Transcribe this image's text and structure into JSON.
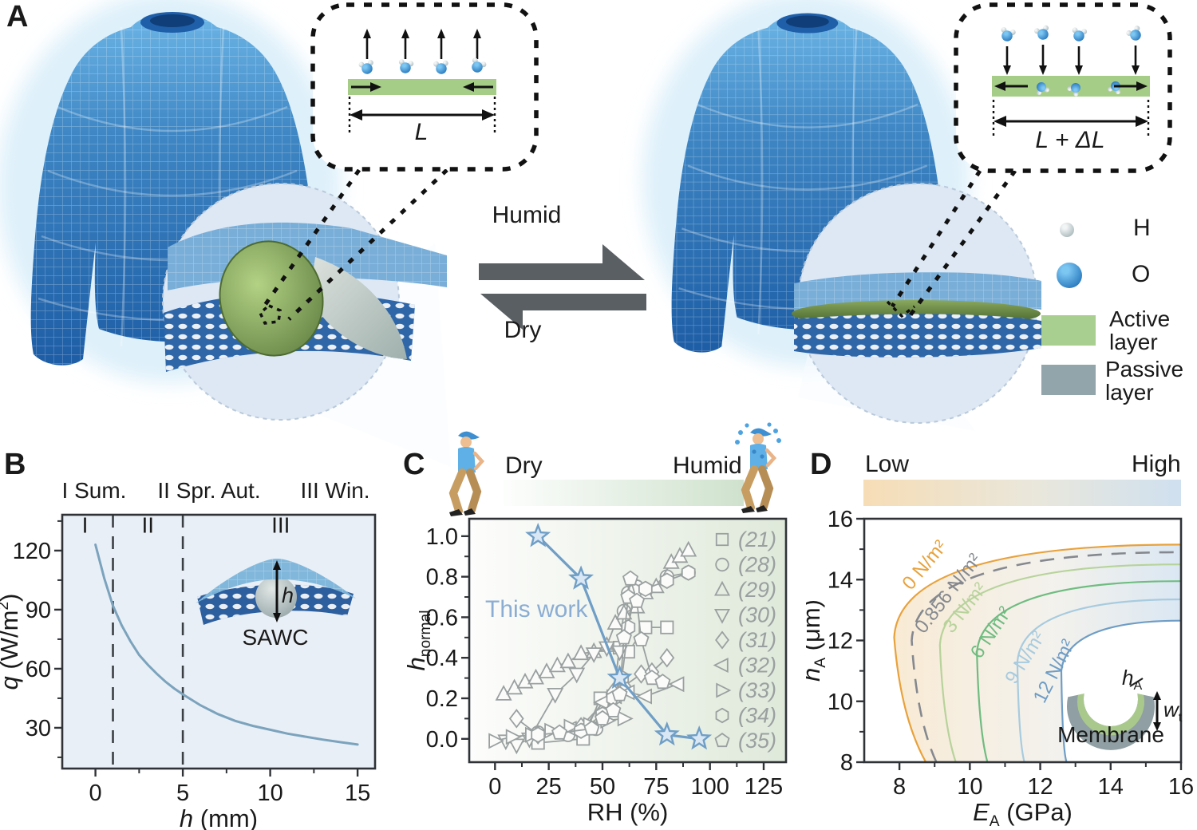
{
  "panelA": {
    "label": "A",
    "humid_label": "Humid",
    "dry_label": "Dry",
    "inset_dry": {
      "dimension_label": "L"
    },
    "inset_humid": {
      "dimension_label": "L + ΔL"
    },
    "legend": {
      "h_label": "H",
      "o_label": "O",
      "active_label": "Active layer",
      "passive_label": "Passive layer",
      "active_color": "#a8cf90",
      "passive_color": "#91a5ab"
    }
  },
  "panelB": {
    "label": "B",
    "season_labels": [
      "I Sum.",
      "II Spr. Aut.",
      "III Win."
    ],
    "inset_label": "SAWC",
    "inset_h_label": "h"
  },
  "panelC": {
    "label": "C",
    "dry_label": "Dry",
    "humid_label": "Humid",
    "annotation": "This work",
    "annotation_color": "#8badd3"
  },
  "panelD": {
    "label": "D",
    "low_label": "Low",
    "high_label": "High",
    "inset_label": "Membrane",
    "inset_h_var": "h",
    "inset_h_sub": "A",
    "inset_w_var": "w",
    "inset_w_sub": "t"
  },
  "chart_data": [
    {
      "id": "panelB-line",
      "type": "line",
      "xlabel_parts": [
        [
          "h",
          "i"
        ],
        [
          " (mm)",
          "n"
        ]
      ],
      "ylabel_parts": [
        [
          "q",
          "i"
        ],
        [
          " (W/m",
          "n"
        ],
        [
          "2",
          "sup"
        ],
        [
          ")",
          "n"
        ]
      ],
      "xlim": [
        -1.9,
        16.0
      ],
      "ylim": [
        9.3,
        138.2
      ],
      "xticks": [
        0,
        5,
        10,
        15
      ],
      "yticks": [
        30,
        60,
        90,
        120
      ],
      "xminor": [
        2.5,
        7.5,
        12.5
      ],
      "yminor": [
        15,
        45,
        75,
        105,
        135
      ],
      "bg": "#e9eff6",
      "dashed_vlines": [
        1,
        5
      ],
      "region_labels": [
        {
          "text": "I",
          "x": -0.6,
          "y": 129
        },
        {
          "text": "II",
          "x": 3.0,
          "y": 129
        },
        {
          "text": "III",
          "x": 10.6,
          "y": 129
        }
      ],
      "series": [
        {
          "name": "q vs h",
          "color": "#7ba3bd",
          "width": 3,
          "x": [
            0,
            0.5,
            1,
            1.5,
            2,
            2.5,
            3,
            3.5,
            4,
            4.5,
            5,
            6,
            7,
            8,
            9,
            10,
            11,
            12,
            13,
            14,
            15
          ],
          "y": [
            123,
            106,
            92,
            82,
            74,
            67,
            62,
            57.5,
            53.5,
            50,
            47,
            41.5,
            37,
            33.5,
            31,
            29,
            27,
            25.5,
            24,
            22.7,
            21.5
          ]
        }
      ]
    },
    {
      "id": "panelC-scatter",
      "type": "scatter",
      "xlabel_parts": [
        [
          "RH (%)",
          "n"
        ]
      ],
      "ylabel_parts": [
        [
          "h",
          "i"
        ],
        [
          "normal",
          "sub"
        ]
      ],
      "xlim": [
        -12,
        135.4
      ],
      "ylim": [
        -0.115,
        1.086
      ],
      "xticks": [
        0,
        25,
        50,
        75,
        100,
        125
      ],
      "yticks": [
        0,
        0.2,
        0.4,
        0.6,
        0.8,
        1.0
      ],
      "ytick_decimals": 1,
      "xminor": [
        12.5,
        37.5,
        62.5,
        87.5,
        112.5
      ],
      "yminor": [
        0.1,
        0.3,
        0.5,
        0.7,
        0.9
      ],
      "bg_gradient": [
        "#fdfdfc",
        "#dfe9da"
      ],
      "series_color": "#9aa0a0",
      "series": [
        {
          "name": "(21)",
          "marker": "square",
          "points": [
            [
              20,
              -0.02
            ],
            [
              41,
              0
            ],
            [
              49,
              0.2
            ],
            [
              55,
              0.21
            ],
            [
              58,
              0.45
            ],
            [
              62,
              0.43
            ],
            [
              70,
              0.55
            ],
            [
              80,
              0.55
            ]
          ]
        },
        {
          "name": "(28)",
          "marker": "circle",
          "points": [
            [
              20,
              0.03
            ],
            [
              34,
              0.02
            ],
            [
              47,
              0.05
            ],
            [
              55,
              0.2
            ],
            [
              60,
              0.63
            ],
            [
              62,
              0.72
            ],
            [
              66,
              0.75
            ],
            [
              70,
              0.73
            ],
            [
              80,
              0.8
            ],
            [
              90,
              0.82
            ]
          ]
        },
        {
          "name": "(29)",
          "marker": "triangle-up",
          "points": [
            [
              4,
              0.22
            ],
            [
              9,
              0.25
            ],
            [
              14,
              0.28
            ],
            [
              19,
              0.3
            ],
            [
              24,
              0.33
            ],
            [
              29,
              0.36
            ],
            [
              34,
              0.38
            ],
            [
              40,
              0.42
            ],
            [
              46,
              0.43
            ],
            [
              52,
              0.46
            ],
            [
              56,
              0.57
            ],
            [
              60,
              0.62
            ],
            [
              66,
              0.65
            ],
            [
              70,
              0.72
            ],
            [
              75,
              0.75
            ],
            [
              82,
              0.87
            ],
            [
              86,
              0.9
            ],
            [
              90,
              0.93
            ]
          ]
        },
        {
          "name": "(30)",
          "marker": "triangle-down",
          "points": [
            [
              5,
              -0.01
            ],
            [
              10,
              -0.03
            ],
            [
              16,
              0
            ],
            [
              28,
              0.22
            ],
            [
              38,
              0.32
            ],
            [
              46,
              0.42
            ],
            [
              52,
              0.45
            ],
            [
              58,
              0.43
            ]
          ]
        },
        {
          "name": "(31)",
          "marker": "diamond",
          "points": [
            [
              10,
              0.1
            ],
            [
              20,
              0.02
            ],
            [
              40,
              0.06
            ],
            [
              55,
              0.23
            ],
            [
              60,
              0.26
            ],
            [
              68,
              0.32
            ],
            [
              73,
              0.33
            ],
            [
              80,
              0.4
            ]
          ]
        },
        {
          "name": "(32)",
          "marker": "triangle-left",
          "points": [
            [
              35,
              0.05
            ],
            [
              42,
              0.06
            ],
            [
              50,
              0.18
            ],
            [
              56,
              0.21
            ],
            [
              62,
              0.23
            ],
            [
              70,
              0.21
            ],
            [
              85,
              0.27
            ]
          ]
        },
        {
          "name": "(33)",
          "marker": "triangle-right",
          "points": [
            [
              0,
              -0.01
            ],
            [
              8,
              0.01
            ],
            [
              17,
              0.02
            ],
            [
              26,
              0.04
            ],
            [
              35,
              0.06
            ],
            [
              44,
              0.07
            ],
            [
              52,
              0.09
            ],
            [
              60,
              0.1
            ]
          ]
        },
        {
          "name": "(34)",
          "marker": "hexagon",
          "points": [
            [
              20,
              0.02
            ],
            [
              40,
              0.04
            ],
            [
              50,
              0.12
            ],
            [
              55,
              0.2
            ],
            [
              59,
              0.3
            ],
            [
              62,
              0.55
            ],
            [
              65,
              0.73
            ],
            [
              70,
              0.74
            ],
            [
              80,
              0.78
            ],
            [
              90,
              0.82
            ]
          ]
        },
        {
          "name": "(35)",
          "marker": "pentagon",
          "points": [
            [
              30,
              0.03
            ],
            [
              45,
              0.05
            ],
            [
              50,
              0.1
            ],
            [
              55,
              0.14
            ],
            [
              58,
              0.22
            ],
            [
              60,
              0.5
            ],
            [
              62,
              0.7
            ],
            [
              63,
              0.79
            ],
            [
              66,
              0.68
            ],
            [
              68,
              0.49
            ],
            [
              73,
              0.3
            ],
            [
              78,
              0.28
            ]
          ]
        },
        {
          "name": "This work",
          "marker": "star",
          "in_legend": false,
          "color": "#6f9ec6",
          "marker_fill": "#d9e7f5",
          "width": 3.2,
          "points": [
            [
              20,
              1.0
            ],
            [
              40,
              0.79
            ],
            [
              58,
              0.3
            ],
            [
              80,
              0.02
            ],
            [
              95,
              0.0
            ]
          ]
        }
      ]
    },
    {
      "id": "panelD-contour",
      "type": "contour",
      "xlabel_parts": [
        [
          "E",
          "i"
        ],
        [
          "A",
          "sub"
        ],
        [
          " (GPa)",
          "n"
        ]
      ],
      "ylabel_parts": [
        [
          "h",
          "i"
        ],
        [
          "A",
          "sub"
        ],
        [
          " (μm)",
          "n"
        ]
      ],
      "xlim": [
        7,
        16
      ],
      "ylim": [
        8,
        16
      ],
      "xticks": [
        8,
        10,
        12,
        14,
        16
      ],
      "yticks": [
        8,
        10,
        12,
        14,
        16
      ],
      "xminor": [
        9,
        11,
        13,
        15
      ],
      "yminor": [
        9,
        11,
        13,
        15
      ],
      "band_gradient": [
        "#f5ddb8",
        "#e7e4da",
        "#c6daed"
      ],
      "contours": [
        {
          "label": "0 N/m²",
          "color": "#e8a23c",
          "dashed": false,
          "bottom_x": 8.75,
          "vertex": [
            7.85,
            12.1
          ],
          "right_y": 15.15,
          "label_at": [
            8.85,
            14.35
          ],
          "label_angle": -50
        },
        {
          "label": "0.856 N/m²",
          "color": "#85898f",
          "dashed": true,
          "bottom_x": 9.05,
          "vertex": [
            8.35,
            12.0
          ],
          "right_y": 14.9,
          "label_at": [
            9.52,
            13.42
          ],
          "label_angle": -52
        },
        {
          "label": "3 N/m²",
          "color": "#b7d39b",
          "dashed": false,
          "bottom_x": 9.6,
          "vertex": [
            9.15,
            11.85
          ],
          "right_y": 14.5,
          "label_at": [
            10.0,
            12.95
          ],
          "label_angle": -52
        },
        {
          "label": "6 N/m²",
          "color": "#6fbc80",
          "dashed": false,
          "bottom_x": 10.5,
          "vertex": [
            10.2,
            11.6
          ],
          "right_y": 13.95,
          "label_at": [
            10.75,
            12.15
          ],
          "label_angle": -56
        },
        {
          "label": "9 N/m²",
          "color": "#a7cbdf",
          "dashed": false,
          "bottom_x": 11.55,
          "vertex": [
            11.35,
            11.3
          ],
          "right_y": 13.35,
          "label_at": [
            11.72,
            11.33
          ],
          "label_angle": -58
        },
        {
          "label": "12 N/m²",
          "color": "#6f9dc5",
          "dashed": false,
          "bottom_x": 12.75,
          "vertex": [
            12.6,
            11.0
          ],
          "right_y": 12.65,
          "label_at": [
            12.55,
            10.9
          ],
          "label_angle": -63
        }
      ]
    }
  ]
}
